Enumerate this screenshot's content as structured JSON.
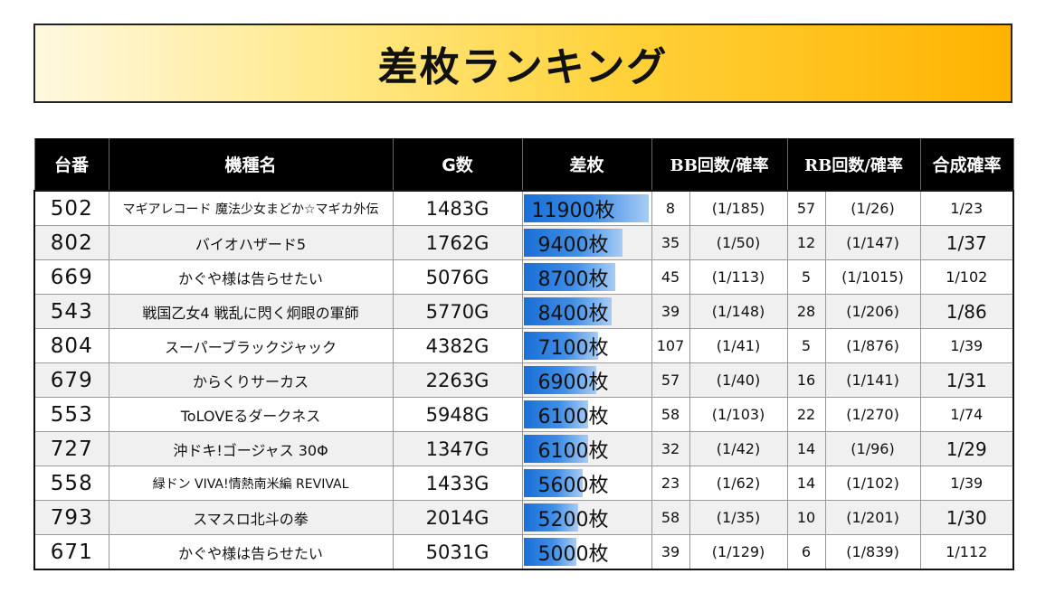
{
  "title": "差枚ランキング",
  "headers": {
    "machine_no": "台番",
    "model": "機種名",
    "games": "G数",
    "diff": "差枚",
    "bb": "BB回数/確率",
    "rb": "RB回数/確率",
    "combined": "合成確率"
  },
  "colors": {
    "title_gradient_end": "#ffb300",
    "bar": "#3f8ee8",
    "header_bg": "#000000"
  },
  "max_diff": 11900,
  "rows": [
    {
      "no": "502",
      "name": "マギアレコード 魔法少女まどか☆マギカ外伝",
      "games": "1483G",
      "diff": "11900枚",
      "diff_value": 11900,
      "bb": "8",
      "bb_prob": "(1/185)",
      "rb": "57",
      "rb_prob": "(1/26)",
      "comb": "1/23"
    },
    {
      "no": "802",
      "name": "バイオハザード5",
      "games": "1762G",
      "diff": "9400枚",
      "diff_value": 9400,
      "bb": "35",
      "bb_prob": "(1/50)",
      "rb": "12",
      "rb_prob": "(1/147)",
      "comb": "1/37"
    },
    {
      "no": "669",
      "name": "かぐや様は告らせたい",
      "games": "5076G",
      "diff": "8700枚",
      "diff_value": 8700,
      "bb": "45",
      "bb_prob": "(1/113)",
      "rb": "5",
      "rb_prob": "(1/1015)",
      "comb": "1/102"
    },
    {
      "no": "543",
      "name": "戦国乙女4 戦乱に閃く炯眼の軍師",
      "games": "5770G",
      "diff": "8400枚",
      "diff_value": 8400,
      "bb": "39",
      "bb_prob": "(1/148)",
      "rb": "28",
      "rb_prob": "(1/206)",
      "comb": "1/86"
    },
    {
      "no": "804",
      "name": "スーパーブラックジャック",
      "games": "4382G",
      "diff": "7100枚",
      "diff_value": 7100,
      "bb": "107",
      "bb_prob": "(1/41)",
      "rb": "5",
      "rb_prob": "(1/876)",
      "comb": "1/39"
    },
    {
      "no": "679",
      "name": "からくりサーカス",
      "games": "2263G",
      "diff": "6900枚",
      "diff_value": 6900,
      "bb": "57",
      "bb_prob": "(1/40)",
      "rb": "16",
      "rb_prob": "(1/141)",
      "comb": "1/31"
    },
    {
      "no": "553",
      "name": "ToLOVEるダークネス",
      "games": "5948G",
      "diff": "6100枚",
      "diff_value": 6100,
      "bb": "58",
      "bb_prob": "(1/103)",
      "rb": "22",
      "rb_prob": "(1/270)",
      "comb": "1/74"
    },
    {
      "no": "727",
      "name": "沖ドキ!ゴージャス 30Φ",
      "games": "1347G",
      "diff": "6100枚",
      "diff_value": 6100,
      "bb": "32",
      "bb_prob": "(1/42)",
      "rb": "14",
      "rb_prob": "(1/96)",
      "comb": "1/29"
    },
    {
      "no": "558",
      "name": "緑ドン VIVA!情熱南米編 REVIVAL",
      "games": "1433G",
      "diff": "5600枚",
      "diff_value": 5600,
      "bb": "23",
      "bb_prob": "(1/62)",
      "rb": "14",
      "rb_prob": "(1/102)",
      "comb": "1/39"
    },
    {
      "no": "793",
      "name": "スマスロ北斗の拳",
      "games": "2014G",
      "diff": "5200枚",
      "diff_value": 5200,
      "bb": "58",
      "bb_prob": "(1/35)",
      "rb": "10",
      "rb_prob": "(1/201)",
      "comb": "1/30"
    },
    {
      "no": "671",
      "name": "かぐや様は告らせたい",
      "games": "5031G",
      "diff": "5000枚",
      "diff_value": 5000,
      "bb": "39",
      "bb_prob": "(1/129)",
      "rb": "6",
      "rb_prob": "(1/839)",
      "comb": "1/112"
    }
  ]
}
